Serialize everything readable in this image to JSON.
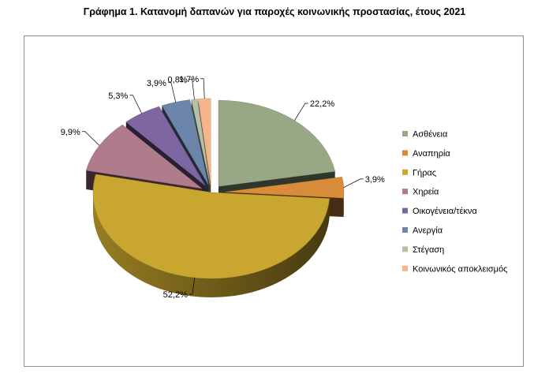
{
  "title": "Γράφημα 1. Κατανομή δαπανών για παροχές κοινωνικής προστασίας, έτους 2021",
  "chart_data": {
    "type": "pie",
    "title": "Γράφημα 1. Κατανομή δαπανών για παροχές κοινωνικής προστασίας, έτους 2021",
    "style": "3d-exploded",
    "legend_position": "right",
    "categories": [
      "Ασθένεια",
      "Αναπηρία",
      "Γήρας",
      "Χηρεία",
      "Οικογένεια/τέκνα",
      "Ανεργία",
      "Στέγαση",
      "Κοινωνικός αποκλεισμός"
    ],
    "values": [
      22.2,
      3.9,
      52.2,
      9.9,
      5.3,
      3.9,
      0.8,
      1.7
    ],
    "value_labels": [
      "22,2%",
      "3,9%",
      "52,2%",
      "9,9%",
      "5,3%",
      "3,9%",
      "0,8%",
      "1,7%"
    ],
    "colors": [
      "#98A886",
      "#D88C3A",
      "#C9A62F",
      "#B07C8C",
      "#7E66A2",
      "#6B86AA",
      "#B6C0A6",
      "#F2B58C"
    ]
  }
}
